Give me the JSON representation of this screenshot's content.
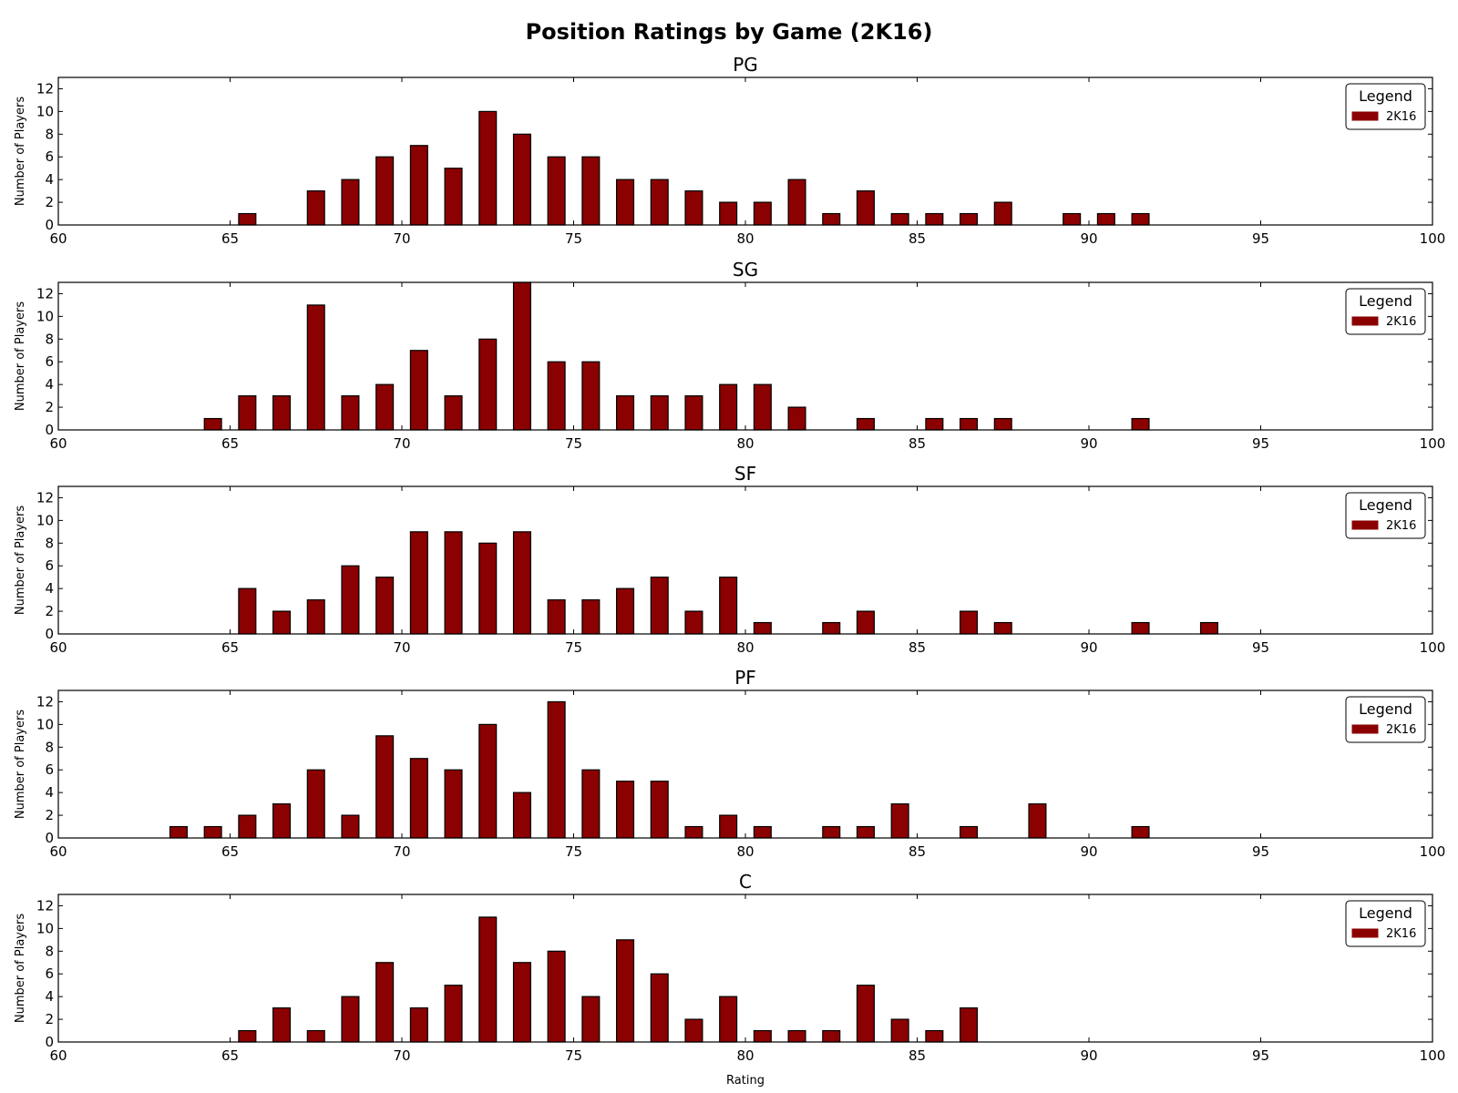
{
  "figure": {
    "title": "Position Ratings by Game (2K16)",
    "xlabel": "Rating",
    "ylabel": "Number of Players"
  },
  "chart_data": [
    {
      "type": "bar",
      "title": "PG",
      "ylabel": "Number of Players",
      "xlim": [
        60,
        100
      ],
      "ylim": [
        0,
        13
      ],
      "xticks": [
        60,
        65,
        70,
        75,
        80,
        85,
        90,
        95,
        100
      ],
      "yticks": [
        0,
        2,
        4,
        6,
        8,
        10,
        12
      ],
      "legend": {
        "title": "Legend",
        "location": "top-right",
        "entries": [
          "2K16"
        ]
      },
      "color": "#8b0000",
      "series": [
        {
          "name": "2K16",
          "x": [
            65,
            66,
            67,
            68,
            69,
            70,
            71,
            72,
            73,
            74,
            75,
            76,
            77,
            78,
            79,
            80,
            81,
            82,
            83,
            84,
            85,
            86,
            87,
            88,
            89,
            90,
            91
          ],
          "values": [
            1,
            0,
            3,
            4,
            6,
            7,
            5,
            10,
            8,
            6,
            6,
            4,
            4,
            3,
            2,
            2,
            4,
            1,
            3,
            1,
            1,
            1,
            2,
            0,
            1,
            1,
            1
          ]
        }
      ]
    },
    {
      "type": "bar",
      "title": "SG",
      "ylabel": "Number of Players",
      "xlim": [
        60,
        100
      ],
      "ylim": [
        0,
        13
      ],
      "xticks": [
        60,
        65,
        70,
        75,
        80,
        85,
        90,
        95,
        100
      ],
      "yticks": [
        0,
        2,
        4,
        6,
        8,
        10,
        12
      ],
      "legend": {
        "title": "Legend",
        "location": "top-right",
        "entries": [
          "2K16"
        ]
      },
      "color": "#8b0000",
      "series": [
        {
          "name": "2K16",
          "x": [
            64,
            65,
            66,
            67,
            68,
            69,
            70,
            71,
            72,
            73,
            74,
            75,
            76,
            77,
            78,
            79,
            80,
            81,
            82,
            83,
            84,
            85,
            86,
            87,
            88,
            89,
            90,
            91
          ],
          "values": [
            1,
            3,
            3,
            11,
            3,
            4,
            7,
            3,
            8,
            13,
            6,
            6,
            3,
            3,
            3,
            4,
            4,
            2,
            0,
            1,
            0,
            1,
            1,
            1,
            0,
            0,
            0,
            1
          ]
        }
      ]
    },
    {
      "type": "bar",
      "title": "SF",
      "ylabel": "Number of Players",
      "xlim": [
        60,
        100
      ],
      "ylim": [
        0,
        13
      ],
      "xticks": [
        60,
        65,
        70,
        75,
        80,
        85,
        90,
        95,
        100
      ],
      "yticks": [
        0,
        2,
        4,
        6,
        8,
        10,
        12
      ],
      "legend": {
        "title": "Legend",
        "location": "top-right",
        "entries": [
          "2K16"
        ]
      },
      "color": "#8b0000",
      "series": [
        {
          "name": "2K16",
          "x": [
            65,
            66,
            67,
            68,
            69,
            70,
            71,
            72,
            73,
            74,
            75,
            76,
            77,
            78,
            79,
            80,
            81,
            82,
            83,
            84,
            85,
            86,
            87,
            88,
            89,
            90,
            91,
            92,
            93
          ],
          "values": [
            4,
            2,
            3,
            6,
            5,
            9,
            9,
            8,
            9,
            3,
            3,
            4,
            5,
            2,
            5,
            1,
            0,
            1,
            2,
            0,
            0,
            2,
            1,
            0,
            0,
            0,
            1,
            0,
            1
          ]
        }
      ]
    },
    {
      "type": "bar",
      "title": "PF",
      "ylabel": "Number of Players",
      "xlim": [
        60,
        100
      ],
      "ylim": [
        0,
        13
      ],
      "xticks": [
        60,
        65,
        70,
        75,
        80,
        85,
        90,
        95,
        100
      ],
      "yticks": [
        0,
        2,
        4,
        6,
        8,
        10,
        12
      ],
      "legend": {
        "title": "Legend",
        "location": "top-right",
        "entries": [
          "2K16"
        ]
      },
      "color": "#8b0000",
      "series": [
        {
          "name": "2K16",
          "x": [
            63,
            64,
            65,
            66,
            67,
            68,
            69,
            70,
            71,
            72,
            73,
            74,
            75,
            76,
            77,
            78,
            79,
            80,
            81,
            82,
            83,
            84,
            85,
            86,
            87,
            88,
            89,
            90,
            91
          ],
          "values": [
            1,
            1,
            2,
            3,
            6,
            2,
            9,
            7,
            6,
            10,
            4,
            12,
            6,
            5,
            5,
            1,
            2,
            1,
            0,
            1,
            1,
            3,
            0,
            1,
            0,
            3,
            0,
            0,
            1
          ]
        }
      ]
    },
    {
      "type": "bar",
      "title": "C",
      "ylabel": "Number of Players",
      "xlabel": "Rating",
      "xlim": [
        60,
        100
      ],
      "ylim": [
        0,
        13
      ],
      "xticks": [
        60,
        65,
        70,
        75,
        80,
        85,
        90,
        95,
        100
      ],
      "yticks": [
        0,
        2,
        4,
        6,
        8,
        10,
        12
      ],
      "legend": {
        "title": "Legend",
        "location": "top-right",
        "entries": [
          "2K16"
        ]
      },
      "color": "#8b0000",
      "series": [
        {
          "name": "2K16",
          "x": [
            65,
            66,
            67,
            68,
            69,
            70,
            71,
            72,
            73,
            74,
            75,
            76,
            77,
            78,
            79,
            80,
            81,
            82,
            83,
            84,
            85,
            86
          ],
          "values": [
            1,
            3,
            1,
            4,
            7,
            3,
            5,
            11,
            7,
            8,
            4,
            9,
            6,
            2,
            4,
            1,
            1,
            1,
            5,
            2,
            1,
            3
          ]
        }
      ]
    }
  ]
}
